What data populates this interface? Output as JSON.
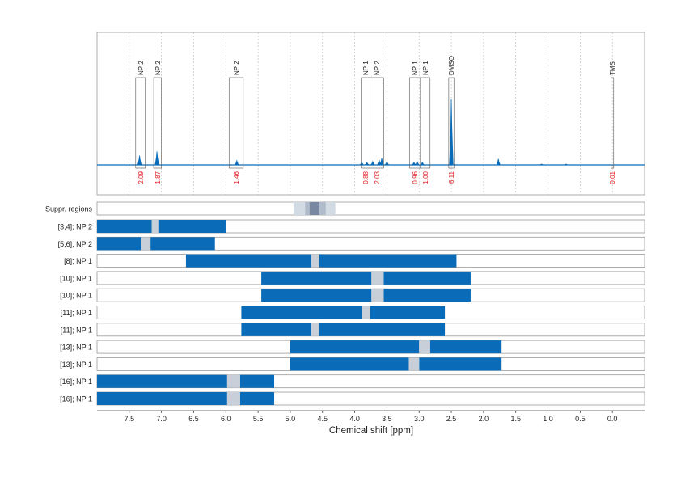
{
  "colors": {
    "accent": "#0a6cb8",
    "gap": "#c8cfd8",
    "suppr_light": "#d2dae4",
    "suppr_mid": "#b0bccb",
    "suppr_dark": "#7888a0",
    "integral": "#e41a1c",
    "frame": "#9a9a9a"
  },
  "chart_data": {
    "type": "line",
    "xlabel": "Chemical shift [ppm]",
    "xlim": [
      8.0,
      -0.5
    ],
    "ylim": [
      0,
      1
    ],
    "grid": true,
    "x_ticks": [
      "7.5",
      "7.0",
      "6.5",
      "6.0",
      "5.5",
      "5.0",
      "4.5",
      "4.0",
      "3.5",
      "3.0",
      "2.5",
      "2.0",
      "1.5",
      "1.0",
      "0.5",
      "0.0"
    ],
    "x_tick_values": [
      7.5,
      7.0,
      6.5,
      6.0,
      5.5,
      5.0,
      4.5,
      4.0,
      3.5,
      3.0,
      2.5,
      2.0,
      1.5,
      1.0,
      0.5,
      0.0
    ],
    "spectrum": [
      {
        "ppm": 7.34,
        "h": 0.11
      },
      {
        "ppm": 7.07,
        "h": 0.16
      },
      {
        "ppm": 5.83,
        "h": 0.05
      },
      {
        "ppm": 3.89,
        "h": 0.03
      },
      {
        "ppm": 3.81,
        "h": 0.03
      },
      {
        "ppm": 3.72,
        "h": 0.04
      },
      {
        "ppm": 3.62,
        "h": 0.06
      },
      {
        "ppm": 3.58,
        "h": 0.08
      },
      {
        "ppm": 3.5,
        "h": 0.04
      },
      {
        "ppm": 3.08,
        "h": 0.03
      },
      {
        "ppm": 3.03,
        "h": 0.04
      },
      {
        "ppm": 2.95,
        "h": 0.03
      },
      {
        "ppm": 2.5,
        "h": 0.78
      },
      {
        "ppm": 1.77,
        "h": 0.07
      },
      {
        "ppm": 1.1,
        "h": 0.01
      },
      {
        "ppm": 0.72,
        "h": 0.01
      }
    ],
    "annotations": [
      {
        "label": "NP 2",
        "from": 7.4,
        "to": 7.25,
        "integral": "2.09"
      },
      {
        "label": "NP 2",
        "from": 7.12,
        "to": 7.0,
        "integral": "1.87"
      },
      {
        "label": "NP 2",
        "from": 5.95,
        "to": 5.73,
        "integral": "1.46"
      },
      {
        "label": "NP 1",
        "from": 3.9,
        "to": 3.76,
        "integral": "0.88"
      },
      {
        "label": "NP 2",
        "from": 3.76,
        "to": 3.55,
        "integral": "2.03"
      },
      {
        "label": "NP 1",
        "from": 3.15,
        "to": 2.98,
        "integral": "0.96"
      },
      {
        "label": "NP 1",
        "from": 2.98,
        "to": 2.83,
        "integral": "1.00"
      },
      {
        "label": "DMSO",
        "from": 2.54,
        "to": 2.46,
        "integral": "6.11"
      },
      {
        "label": "TMS",
        "from": 0.02,
        "to": -0.02,
        "integral": "0.01"
      }
    ],
    "suppression": {
      "label": "Suppr. regions",
      "light": [
        4.95,
        4.3
      ],
      "mid": [
        4.77,
        4.45
      ],
      "dark": [
        4.7,
        4.55
      ]
    },
    "rows": [
      {
        "label": "[3,4]; NP 2",
        "segments": [
          [
            8.0,
            7.15
          ],
          [
            7.05,
            6.0
          ]
        ],
        "gap": [
          7.15,
          7.05
        ]
      },
      {
        "label": "[5,6]; NP 2",
        "segments": [
          [
            8.0,
            7.32
          ],
          [
            7.17,
            6.17
          ]
        ],
        "gap": [
          7.32,
          7.17
        ]
      },
      {
        "label": "[8]; NP 1",
        "segments": [
          [
            6.62,
            4.68
          ],
          [
            4.55,
            2.42
          ]
        ],
        "gap": [
          4.68,
          4.55
        ]
      },
      {
        "label": "[10]; NP 1",
        "segments": [
          [
            5.45,
            3.74
          ],
          [
            3.55,
            2.2
          ]
        ],
        "gap": [
          3.74,
          3.55
        ]
      },
      {
        "label": "[10]; NP 1",
        "segments": [
          [
            5.45,
            3.74
          ],
          [
            3.55,
            2.2
          ]
        ],
        "gap": [
          3.74,
          3.55
        ]
      },
      {
        "label": "[11]; NP 1",
        "segments": [
          [
            5.76,
            3.88
          ],
          [
            3.76,
            2.6
          ]
        ],
        "gap": [
          3.88,
          3.76
        ]
      },
      {
        "label": "[11]; NP 1",
        "segments": [
          [
            5.76,
            4.68
          ],
          [
            4.55,
            2.6
          ]
        ],
        "gap": [
          4.68,
          4.55
        ]
      },
      {
        "label": "[13]; NP 1",
        "segments": [
          [
            5.0,
            3.0
          ],
          [
            2.83,
            1.72
          ]
        ],
        "gap": [
          3.0,
          2.83
        ]
      },
      {
        "label": "[13]; NP 1",
        "segments": [
          [
            5.0,
            3.16
          ],
          [
            3.0,
            1.72
          ]
        ],
        "gap": [
          3.16,
          3.0
        ]
      },
      {
        "label": "[16]; NP 1",
        "segments": [
          [
            8.0,
            5.98
          ],
          [
            5.78,
            5.25
          ]
        ],
        "gap": [
          5.98,
          5.78
        ]
      },
      {
        "label": "[16]; NP 1",
        "segments": [
          [
            8.0,
            5.98
          ],
          [
            5.78,
            5.25
          ]
        ],
        "gap": [
          5.98,
          5.78
        ]
      }
    ]
  }
}
